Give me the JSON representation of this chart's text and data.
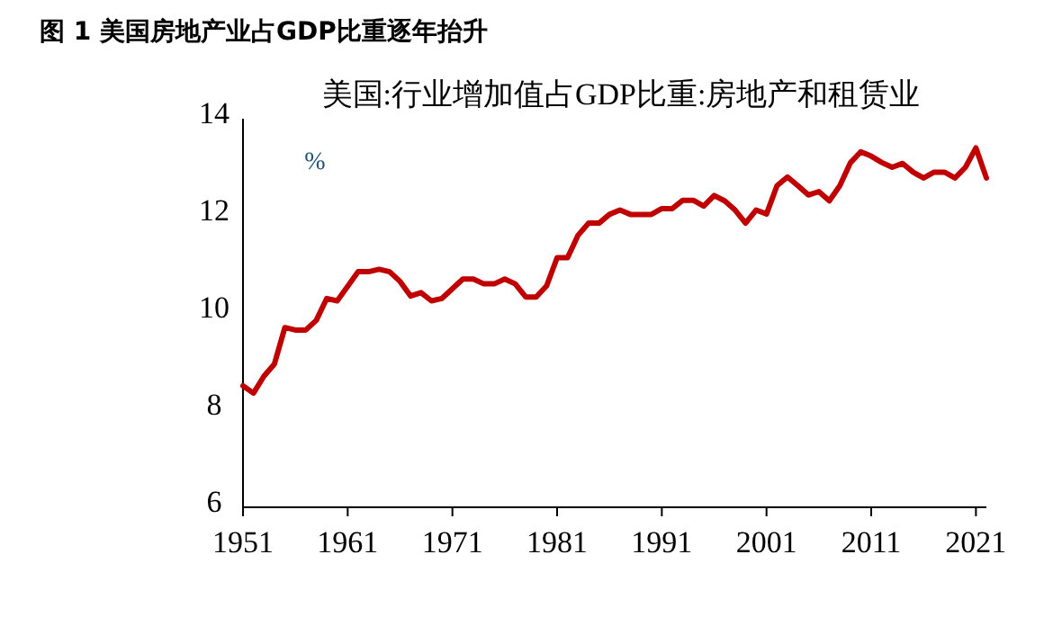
{
  "chart_data": {
    "type": "line",
    "title": "图 1 美国房地产业占GDP比重逐年抬升",
    "subtitle": "美国:行业增加值占GDP比重:房地产和租赁业",
    "ylabel": "%",
    "x": [
      1951,
      1952,
      1953,
      1954,
      1955,
      1956,
      1957,
      1958,
      1959,
      1960,
      1961,
      1962,
      1963,
      1964,
      1965,
      1966,
      1967,
      1968,
      1969,
      1970,
      1971,
      1972,
      1973,
      1974,
      1975,
      1976,
      1977,
      1978,
      1979,
      1980,
      1981,
      1982,
      1983,
      1984,
      1985,
      1986,
      1987,
      1988,
      1989,
      1990,
      1991,
      1992,
      1993,
      1994,
      1995,
      1996,
      1997,
      1998,
      1999,
      2000,
      2001,
      2002,
      2003,
      2004,
      2005,
      2006,
      2007,
      2008,
      2009,
      2010,
      2011,
      2012,
      2013,
      2014,
      2015,
      2016,
      2017,
      2018,
      2019,
      2020,
      2021,
      2022
    ],
    "values": [
      8.5,
      8.35,
      8.7,
      8.95,
      9.7,
      9.65,
      9.65,
      9.85,
      10.3,
      10.25,
      10.55,
      10.85,
      10.85,
      10.9,
      10.85,
      10.65,
      10.35,
      10.42,
      10.25,
      10.3,
      10.5,
      10.7,
      10.7,
      10.6,
      10.6,
      10.7,
      10.6,
      10.33,
      10.33,
      10.56,
      11.14,
      11.14,
      11.6,
      11.85,
      11.85,
      12.03,
      12.12,
      12.03,
      12.03,
      12.03,
      12.15,
      12.15,
      12.32,
      12.32,
      12.2,
      12.42,
      12.31,
      12.12,
      11.85,
      12.12,
      12.04,
      12.62,
      12.8,
      12.62,
      12.43,
      12.5,
      12.31,
      12.62,
      13.09,
      13.32,
      13.23,
      13.1,
      13.0,
      13.08,
      12.9,
      12.78,
      12.9,
      12.9,
      12.78,
      13.0,
      13.4,
      12.78
    ],
    "color": "#c00000",
    "xlim": [
      1951,
      2022
    ],
    "xticks": [
      1951,
      1961,
      1971,
      1981,
      1991,
      2001,
      2011,
      2021
    ],
    "ylim": [
      6,
      14
    ],
    "yticks": [
      6,
      8,
      10,
      12,
      14
    ],
    "grid": false,
    "legend": false,
    "marker": "none",
    "line_style": "solid"
  }
}
